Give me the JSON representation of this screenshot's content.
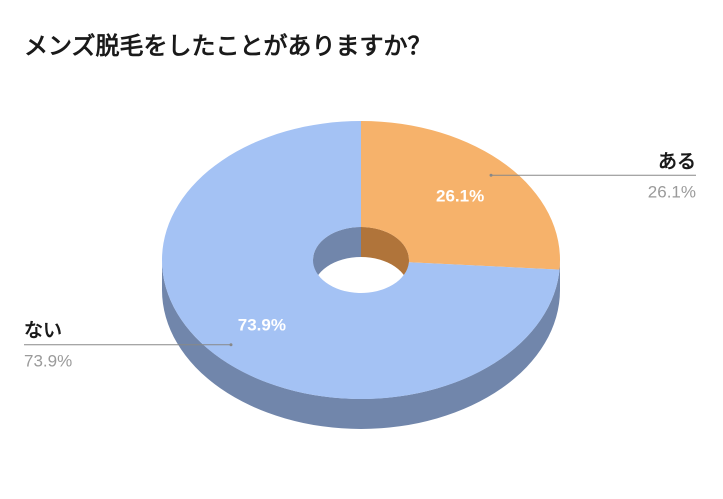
{
  "colors": {
    "background": "#ffffff",
    "title": "#1a1a1a",
    "leader_line": "#888888",
    "percent_label": "#9a9a9a",
    "inner_label": "#ffffff"
  },
  "chart_data": {
    "type": "pie",
    "style": "3d-donut",
    "title": "メンズ脱毛をしたことがありますか？",
    "start_angle_deg": 0,
    "direction": "clockwise",
    "legend": "none",
    "slices": [
      {
        "label": "ある",
        "value": 26.1,
        "percent_label": "26.1%",
        "color": "#f6b26b",
        "side_color": "#b0743a",
        "label_side": "right"
      },
      {
        "label": "ない",
        "value": 73.9,
        "percent_label": "73.9%",
        "color": "#a4c2f4",
        "side_color": "#7186ab",
        "label_side": "left"
      }
    ]
  }
}
